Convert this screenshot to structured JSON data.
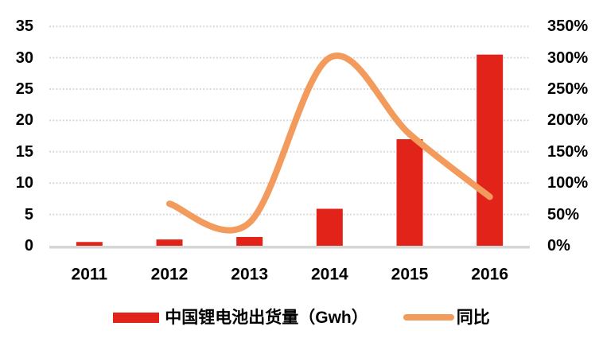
{
  "chart_data": {
    "type": "combo-bar-line",
    "categories": [
      "2011",
      "2012",
      "2013",
      "2014",
      "2015",
      "2016"
    ],
    "series": [
      {
        "name": "中国锂电池出货量（Gwh）",
        "type": "bar",
        "axis": "left",
        "color": "#E2231A",
        "values": [
          0.6,
          1.0,
          1.4,
          5.9,
          17.0,
          30.5
        ]
      },
      {
        "name": "同比",
        "type": "line",
        "axis": "right",
        "color": "#F29B5C",
        "smooth": true,
        "unit": "%",
        "values": [
          null,
          67,
          37,
          300,
          178,
          78
        ]
      }
    ],
    "left_axis": {
      "min": 0,
      "max": 35,
      "step": 5,
      "ticks": [
        "35",
        "30",
        "25",
        "20",
        "15",
        "10",
        "5",
        "0"
      ]
    },
    "right_axis": {
      "min": 0,
      "max": 350,
      "step": 50,
      "unit": "%",
      "ticks": [
        "350%",
        "300%",
        "250%",
        "200%",
        "150%",
        "100%",
        "50%",
        "0%"
      ]
    },
    "title": "",
    "grid": "horizontal-dashed",
    "legend_position": "bottom"
  },
  "legend": {
    "bar_label": "中国锂电池出货量（Gwh）",
    "line_label": "同比"
  },
  "colors": {
    "bar": "#E2231A",
    "line": "#F29B5C",
    "gridline": "#D9D9D9",
    "axis_line": "#D6D6D6",
    "text": "#000000",
    "background": "#FFFFFF"
  }
}
